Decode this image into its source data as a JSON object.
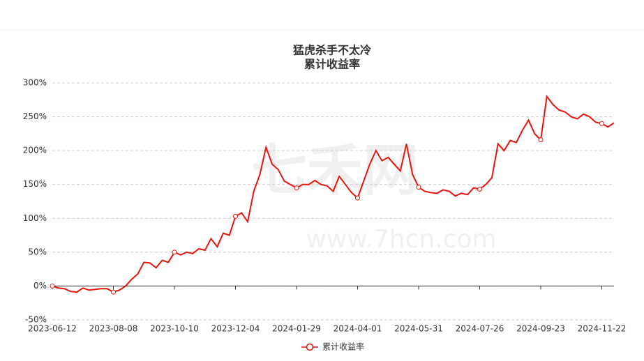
{
  "chart_data": {
    "type": "line",
    "title": "猛虎杀手不太冷",
    "subtitle": "累计收益率",
    "watermark": [
      "七禾网",
      "www.7hcn.com"
    ],
    "categories": [
      "2023-06-12",
      null,
      null,
      null,
      null,
      null,
      null,
      null,
      null,
      null,
      "2023-08-08",
      null,
      null,
      null,
      null,
      null,
      null,
      null,
      null,
      null,
      "2023-10-10",
      null,
      null,
      null,
      null,
      null,
      null,
      null,
      null,
      null,
      "2023-12-04",
      null,
      null,
      null,
      null,
      null,
      null,
      null,
      null,
      null,
      "2024-01-29",
      null,
      null,
      null,
      null,
      null,
      null,
      null,
      null,
      null,
      "2024-04-01",
      null,
      null,
      null,
      null,
      null,
      null,
      null,
      null,
      null,
      "2024-05-31",
      null,
      null,
      null,
      null,
      null,
      null,
      null,
      null,
      null,
      "2024-07-26",
      null,
      null,
      null,
      null,
      null,
      null,
      null,
      null,
      null,
      "2024-09-23",
      null,
      null,
      null,
      null,
      null,
      null,
      null,
      null,
      null,
      "2024-11-22",
      null,
      null
    ],
    "series": [
      {
        "name": "累计收益率",
        "color": "#e8140c",
        "values": [
          0,
          -3,
          -4,
          -8,
          -9,
          -3,
          -6,
          -5,
          -4,
          -4,
          -9,
          -6,
          0,
          10,
          18,
          35,
          34,
          27,
          38,
          35,
          50,
          46,
          50,
          48,
          55,
          53,
          70,
          58,
          78,
          75,
          103,
          108,
          95,
          140,
          165,
          205,
          180,
          172,
          155,
          150,
          145,
          150,
          150,
          156,
          150,
          148,
          140,
          162,
          150,
          138,
          130,
          155,
          180,
          200,
          185,
          190,
          180,
          170,
          210,
          165,
          146,
          140,
          138,
          137,
          142,
          140,
          133,
          137,
          135,
          145,
          143,
          150,
          160,
          210,
          200,
          215,
          212,
          230,
          245,
          225,
          216,
          280,
          268,
          260,
          257,
          250,
          247,
          254,
          250,
          242,
          240,
          235,
          241
        ]
      }
    ],
    "ylim": [
      -50,
      300
    ],
    "yticks": [
      {
        "value": -50,
        "label": "-50%"
      },
      {
        "value": 0,
        "label": "0%"
      },
      {
        "value": 50,
        "label": "50%"
      },
      {
        "value": 100,
        "label": "100%"
      },
      {
        "value": 150,
        "label": "150%"
      },
      {
        "value": 200,
        "label": "200%"
      },
      {
        "value": 250,
        "label": "250%"
      },
      {
        "value": 300,
        "label": "300%"
      }
    ],
    "grid": true,
    "legend": "bottom"
  }
}
